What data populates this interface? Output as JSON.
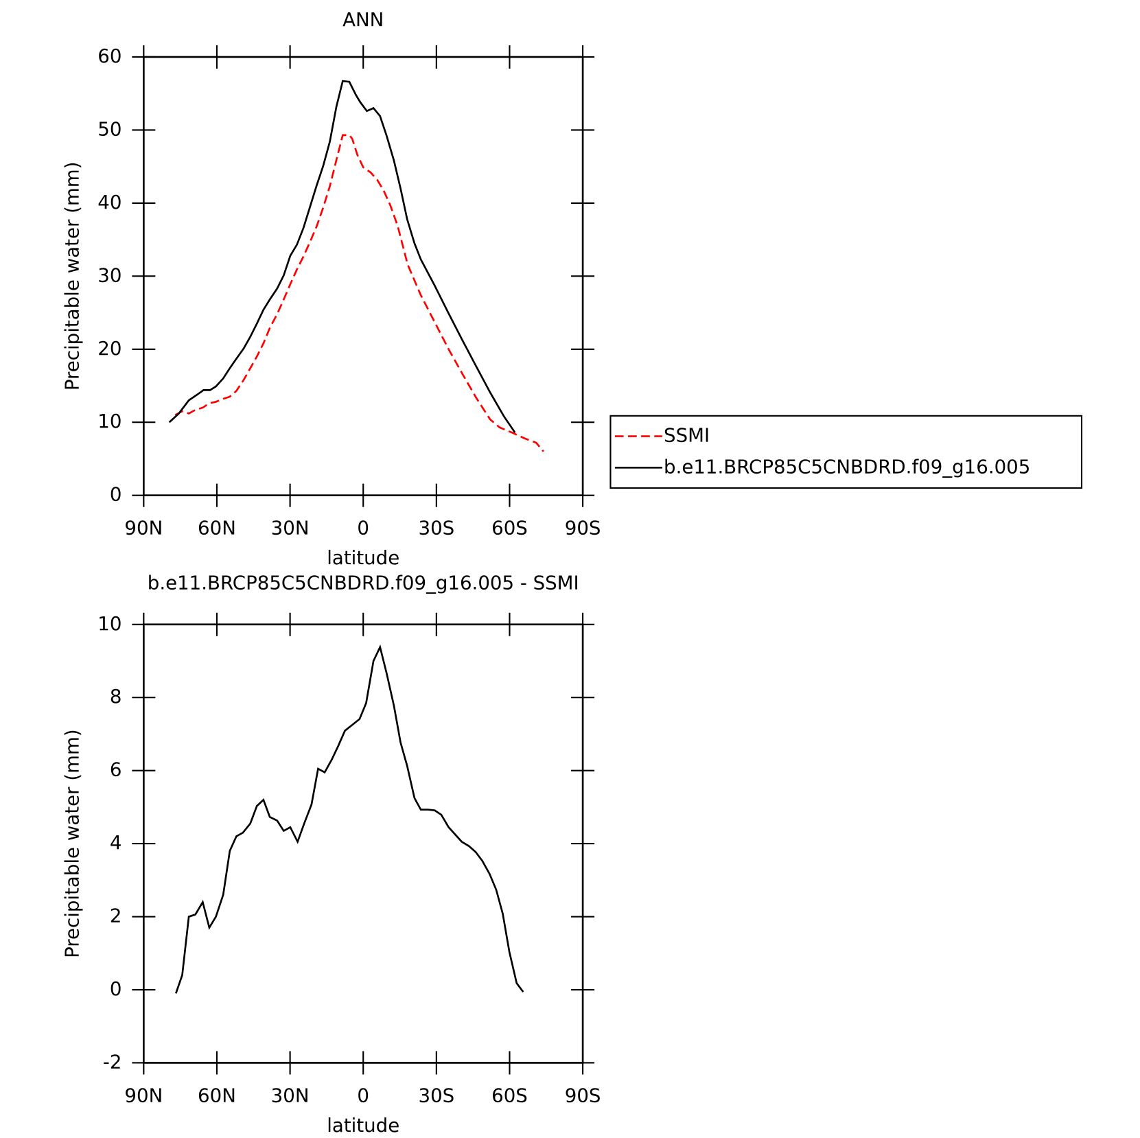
{
  "chart_data": [
    {
      "type": "line",
      "title": "ANN",
      "xlabel": "latitude",
      "ylabel": "Precipitable water (mm)",
      "xlim": [
        90,
        -90
      ],
      "xticks": [
        {
          "value": 90,
          "label": "90N"
        },
        {
          "value": 60,
          "label": "60N"
        },
        {
          "value": 30,
          "label": "30N"
        },
        0,
        {
          "value": -30,
          "label": "30S"
        },
        {
          "value": -60,
          "label": "60S"
        },
        {
          "value": -90,
          "label": "90S"
        }
      ],
      "ylim": [
        0,
        60
      ],
      "yticks": [
        0,
        10,
        20,
        30,
        40,
        50,
        60
      ],
      "legend": "right",
      "series": [
        {
          "name": "SSMI",
          "color": "#ff0000",
          "line_style": "dashed",
          "x": [
            77.1,
            74.2,
            71.5,
            68.8,
            65.8,
            63.1,
            60.4,
            57.4,
            54.7,
            52,
            49,
            46.3,
            43.6,
            40.9,
            38.3,
            35.3,
            32.6,
            29.9,
            27.2,
            24.5,
            21.8,
            19.1,
            16.4,
            13.7,
            11,
            8.4,
            5.7,
            4.5,
            2.4,
            0,
            -3,
            -5.7,
            -8.4,
            -11.1,
            -14.1,
            -18.2,
            -23.6,
            -29.3,
            -35,
            -40.7,
            -46.4,
            -52,
            -55.9,
            -61.6,
            -66.1,
            -70.9,
            -73.9
          ],
          "values": [
            11,
            11.5,
            11.2,
            11.7,
            12,
            12.6,
            12.8,
            13.2,
            13.5,
            14.3,
            15.8,
            17.4,
            19,
            20.8,
            22.9,
            24.8,
            26.8,
            28.9,
            30.9,
            32.7,
            34.7,
            36.8,
            39.4,
            42.3,
            45.9,
            49.3,
            49.3,
            48.8,
            46.6,
            44.9,
            44.2,
            43.2,
            41.7,
            39.7,
            36.9,
            31.6,
            27.4,
            23.7,
            20,
            16.6,
            13.3,
            10.4,
            9.3,
            8.5,
            7.8,
            7.2,
            6
          ]
        },
        {
          "name": "b.e11.BRCP85C5CNBDRD.f09_g16.005",
          "color": "#000000",
          "line_style": "solid",
          "x": [
            79.5,
            75.6,
            71.5,
            68,
            65.5,
            62.8,
            60.4,
            57.4,
            54.7,
            52,
            49,
            46.3,
            43.6,
            40.9,
            38.3,
            35.3,
            32.6,
            29.9,
            27.2,
            24.5,
            21.8,
            19.1,
            16.4,
            13.7,
            11,
            8.4,
            5.7,
            3,
            1.2,
            -1.5,
            -4.2,
            -6.9,
            -9.6,
            -12.6,
            -15.3,
            -18,
            -21,
            -23.6,
            -29.3,
            -35,
            -40.7,
            -46.4,
            -52,
            -57.7,
            -62.2
          ],
          "values": [
            10,
            11.2,
            13,
            13.8,
            14.4,
            14.4,
            14.9,
            16,
            17.4,
            18.7,
            20.1,
            21.7,
            23.5,
            25.4,
            26.8,
            28.3,
            30.1,
            32.8,
            34.3,
            36.6,
            39.5,
            42.4,
            45.1,
            48.4,
            53.2,
            56.7,
            56.6,
            54.8,
            53.8,
            52.6,
            53,
            51.9,
            49.2,
            45.8,
            42,
            37.8,
            34.5,
            32.3,
            28.7,
            24.9,
            21.2,
            17.6,
            14.1,
            10.8,
            8.6
          ]
        }
      ]
    },
    {
      "type": "line",
      "title": "b.e11.BRCP85C5CNBDRD.f09_g16.005 - SSMI",
      "xlabel": "latitude",
      "ylabel": "Precipitable water (mm)",
      "xlim": [
        90,
        -90
      ],
      "xticks": [
        {
          "value": 90,
          "label": "90N"
        },
        {
          "value": 60,
          "label": "60N"
        },
        {
          "value": 30,
          "label": "30N"
        },
        0,
        {
          "value": -30,
          "label": "30S"
        },
        {
          "value": -60,
          "label": "60S"
        },
        {
          "value": -90,
          "label": "90S"
        }
      ],
      "ylim": [
        -2,
        10
      ],
      "yticks": [
        -2,
        0,
        2,
        4,
        6,
        8,
        10
      ],
      "series": [
        {
          "color": "#000000",
          "line_style": "solid",
          "x": [
            76.8,
            74.2,
            71.5,
            68.8,
            65.8,
            63.1,
            60.4,
            57.4,
            54.7,
            52,
            49.3,
            46.3,
            43.6,
            40.9,
            38.3,
            35.3,
            32.6,
            29.9,
            26.9,
            24.2,
            21.2,
            18.5,
            15.8,
            12.9,
            10.2,
            7.5,
            4.5,
            1.5,
            -1.2,
            -4.2,
            -6.9,
            -9.6,
            -12.6,
            -15.3,
            -18,
            -21,
            -23.6,
            -26.6,
            -29.3,
            -32,
            -35,
            -37.7,
            -40.4,
            -43.4,
            -46.1,
            -48.8,
            -51.8,
            -54.5,
            -57.2,
            -59.9,
            -62.9,
            -65.6
          ],
          "values": [
            -0.1,
            0.4,
            2,
            2.06,
            2.4,
            1.7,
            2,
            2.6,
            3.8,
            4.2,
            4.3,
            4.55,
            5.03,
            5.2,
            4.73,
            4.63,
            4.35,
            4.45,
            4.05,
            4.55,
            5.07,
            6.05,
            5.95,
            6.3,
            6.68,
            7.09,
            7.25,
            7.41,
            7.85,
            9,
            9.38,
            8.66,
            7.77,
            6.77,
            6.13,
            5.25,
            4.93,
            4.93,
            4.91,
            4.79,
            4.45,
            4.25,
            4.05,
            3.93,
            3.77,
            3.53,
            3.17,
            2.74,
            2.08,
            1.04,
            0.18,
            -0.06
          ]
        }
      ]
    }
  ]
}
